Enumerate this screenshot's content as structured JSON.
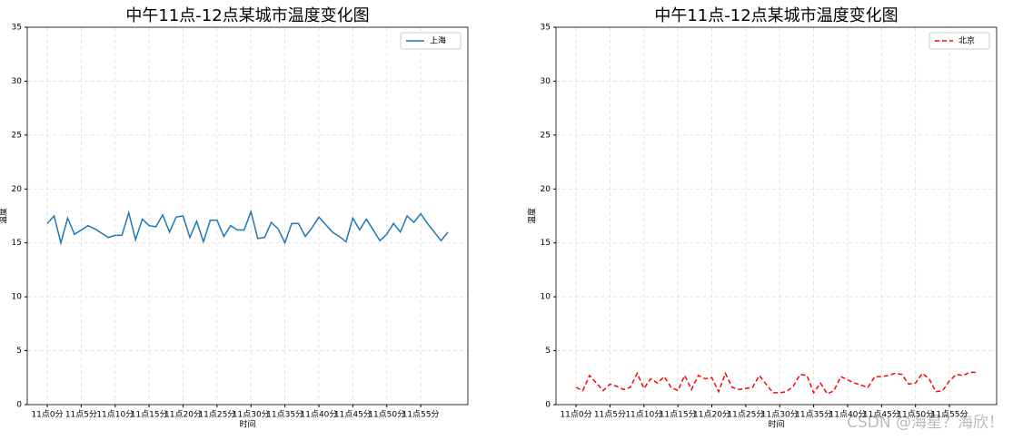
{
  "chart_data": [
    {
      "type": "line",
      "title": "中午11点-12点某城市温度变化图",
      "xlabel": "时间",
      "ylabel": "温度",
      "categories": [
        "11点0分",
        null,
        null,
        null,
        null,
        "11点5分",
        null,
        null,
        null,
        null,
        "11点10分",
        null,
        null,
        null,
        null,
        "11点15分",
        null,
        null,
        null,
        null,
        "11点20分",
        null,
        null,
        null,
        null,
        "11点25分",
        null,
        null,
        null,
        null,
        "11点30分",
        null,
        null,
        null,
        null,
        "11点35分",
        null,
        null,
        null,
        null,
        "11点40分",
        null,
        null,
        null,
        null,
        "11点45分",
        null,
        null,
        null,
        null,
        "11点50分",
        null,
        null,
        null,
        null,
        "11点55分",
        null,
        null,
        null,
        null
      ],
      "series": [
        {
          "name": "上海",
          "color": "#1f77b4",
          "line_style": "solid",
          "values": [
            16.8,
            17.5,
            15.0,
            17.3,
            15.8,
            16.2,
            16.6,
            16.3,
            15.9,
            15.5,
            15.7,
            15.7,
            17.8,
            15.3,
            17.2,
            16.6,
            16.5,
            17.6,
            16.0,
            17.4,
            17.5,
            15.5,
            17.0,
            15.1,
            17.1,
            17.1,
            15.6,
            16.6,
            16.2,
            16.2,
            17.9,
            15.4,
            15.5,
            16.9,
            16.3,
            15.0,
            16.8,
            16.8,
            15.6,
            16.4,
            17.4,
            16.7,
            16.0,
            15.6,
            15.1,
            17.3,
            16.2,
            17.2,
            16.2,
            15.2,
            15.8,
            16.8,
            16.0,
            17.5,
            16.9,
            17.7,
            16.8,
            16.0,
            15.2,
            16.0
          ]
        }
      ],
      "ylim": [
        0,
        35
      ],
      "yticks": [
        0,
        5,
        10,
        15,
        20,
        25,
        30,
        35
      ],
      "grid": true,
      "legend": "upper right"
    },
    {
      "type": "line",
      "title": "中午11点-12点某城市温度变化图",
      "xlabel": "时间",
      "ylabel": "温度",
      "categories": [
        "11点0分",
        null,
        null,
        null,
        null,
        "11点5分",
        null,
        null,
        null,
        null,
        "11点10分",
        null,
        null,
        null,
        null,
        "11点15分",
        null,
        null,
        null,
        null,
        "11点20分",
        null,
        null,
        null,
        null,
        "11点25分",
        null,
        null,
        null,
        null,
        "11点30分",
        null,
        null,
        null,
        null,
        "11点35分",
        null,
        null,
        null,
        null,
        "11点40分",
        null,
        null,
        null,
        null,
        "11点45分",
        null,
        null,
        null,
        null,
        "11点50分",
        null,
        null,
        null,
        null,
        "11点55分",
        null,
        null,
        null,
        null
      ],
      "series": [
        {
          "name": "北京",
          "color": "#ff0000",
          "line_style": "dashed",
          "values": [
            1.6,
            1.3,
            2.7,
            2.0,
            1.3,
            1.9,
            1.7,
            1.4,
            1.6,
            2.9,
            1.5,
            2.4,
            2.0,
            2.6,
            1.6,
            1.3,
            2.7,
            1.4,
            2.7,
            2.4,
            2.5,
            1.2,
            2.9,
            1.6,
            1.4,
            1.5,
            1.6,
            2.7,
            1.9,
            1.1,
            1.1,
            1.2,
            1.7,
            2.8,
            2.7,
            1.1,
            2.0,
            1.0,
            1.3,
            2.6,
            2.3,
            2.0,
            1.8,
            1.6,
            2.6,
            2.6,
            2.7,
            2.9,
            2.8,
            1.9,
            2.0,
            2.9,
            2.4,
            1.2,
            1.3,
            2.2,
            2.8,
            2.7,
            3.0,
            3.0
          ]
        }
      ],
      "ylim": [
        0,
        35
      ],
      "yticks": [
        0,
        5,
        10,
        15,
        20,
        25,
        30,
        35
      ],
      "grid": true,
      "legend": "upper right"
    }
  ],
  "watermark": "CSDN @海星？海欣！"
}
